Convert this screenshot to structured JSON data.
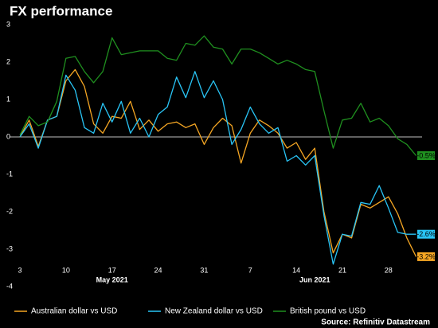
{
  "chart_data": {
    "type": "line",
    "title": "FX performance",
    "source": "Source: Refinitiv Datastream",
    "categories": [
      "3",
      null,
      null,
      null,
      null,
      "10",
      null,
      null,
      null,
      null,
      "17",
      null,
      null,
      null,
      null,
      "24",
      null,
      null,
      null,
      null,
      "31",
      null,
      null,
      null,
      null,
      "7",
      null,
      null,
      null,
      null,
      "14",
      null,
      null,
      null,
      null,
      "21",
      null,
      null,
      null,
      null,
      "28",
      null,
      null,
      null
    ],
    "x_group_labels": [
      "May 2021",
      "Jun 2021"
    ],
    "ylim": [
      -4,
      3
    ],
    "yticks": [
      3,
      2,
      1,
      0,
      -1,
      -2,
      -3,
      -4
    ],
    "grid": false,
    "legend": "bottom",
    "series": [
      {
        "name": "Australian dollar vs USD",
        "color": "#f5a623",
        "values": [
          0.0,
          0.45,
          -0.25,
          0.45,
          0.55,
          1.5,
          1.8,
          1.35,
          0.35,
          0.1,
          0.55,
          0.5,
          0.95,
          0.2,
          0.45,
          0.15,
          0.35,
          0.4,
          0.25,
          0.35,
          -0.2,
          0.25,
          0.5,
          0.3,
          -0.7,
          0.1,
          0.45,
          0.3,
          0.1,
          -0.3,
          -0.15,
          -0.6,
          -0.3,
          -2.0,
          -3.1,
          -2.6,
          -2.7,
          -1.8,
          -1.9,
          -1.75,
          -1.6,
          -2.05,
          -2.7,
          -3.2
        ],
        "value_labels": [
          null,
          null,
          null,
          null,
          null,
          null,
          null,
          null,
          null,
          null,
          null,
          null,
          null,
          null,
          null,
          null,
          null,
          null,
          null,
          null,
          null,
          null,
          null,
          null,
          null,
          null,
          null,
          null,
          null,
          null,
          null,
          null,
          null,
          null,
          null,
          null,
          null,
          null,
          null,
          null,
          null,
          null,
          null,
          "-3.2%"
        ]
      },
      {
        "name": "New Zealand dollar vs USD",
        "color": "#29c5f6",
        "values": [
          0.0,
          0.35,
          -0.3,
          0.45,
          0.55,
          1.65,
          1.25,
          0.25,
          0.1,
          0.9,
          0.4,
          0.95,
          0.1,
          0.5,
          0.0,
          0.6,
          0.8,
          1.6,
          1.05,
          1.75,
          1.05,
          1.5,
          1.0,
          -0.2,
          0.2,
          0.8,
          0.35,
          0.1,
          0.25,
          -0.65,
          -0.5,
          -0.75,
          -0.5,
          -2.1,
          -3.4,
          -2.6,
          -2.65,
          -1.75,
          -1.8,
          -1.3,
          -1.9,
          -2.55,
          -2.6,
          -2.6
        ],
        "value_labels": [
          null,
          null,
          null,
          null,
          null,
          null,
          null,
          null,
          null,
          null,
          null,
          null,
          null,
          null,
          null,
          null,
          null,
          null,
          null,
          null,
          null,
          null,
          null,
          null,
          null,
          null,
          null,
          null,
          null,
          null,
          null,
          null,
          null,
          null,
          null,
          null,
          null,
          null,
          null,
          null,
          null,
          null,
          null,
          "-2.6%"
        ]
      },
      {
        "name": "British pound vs USD",
        "color": "#1f8f1f",
        "values": [
          0.05,
          0.55,
          0.3,
          0.4,
          0.95,
          2.1,
          2.15,
          1.75,
          1.45,
          1.75,
          2.65,
          2.2,
          2.25,
          2.3,
          2.3,
          2.3,
          2.1,
          2.05,
          2.5,
          2.45,
          2.7,
          2.4,
          2.35,
          1.95,
          2.35,
          2.35,
          2.25,
          2.1,
          1.95,
          2.05,
          1.95,
          1.8,
          1.75,
          0.7,
          -0.3,
          0.45,
          0.5,
          0.9,
          0.4,
          0.5,
          0.3,
          -0.05,
          -0.2,
          -0.5
        ],
        "value_labels": [
          null,
          null,
          null,
          null,
          null,
          null,
          null,
          null,
          null,
          null,
          null,
          null,
          null,
          null,
          null,
          null,
          null,
          null,
          null,
          null,
          null,
          null,
          null,
          null,
          null,
          null,
          null,
          null,
          null,
          null,
          null,
          null,
          null,
          null,
          null,
          null,
          null,
          null,
          null,
          null,
          null,
          null,
          null,
          "-0.5%"
        ]
      }
    ]
  }
}
